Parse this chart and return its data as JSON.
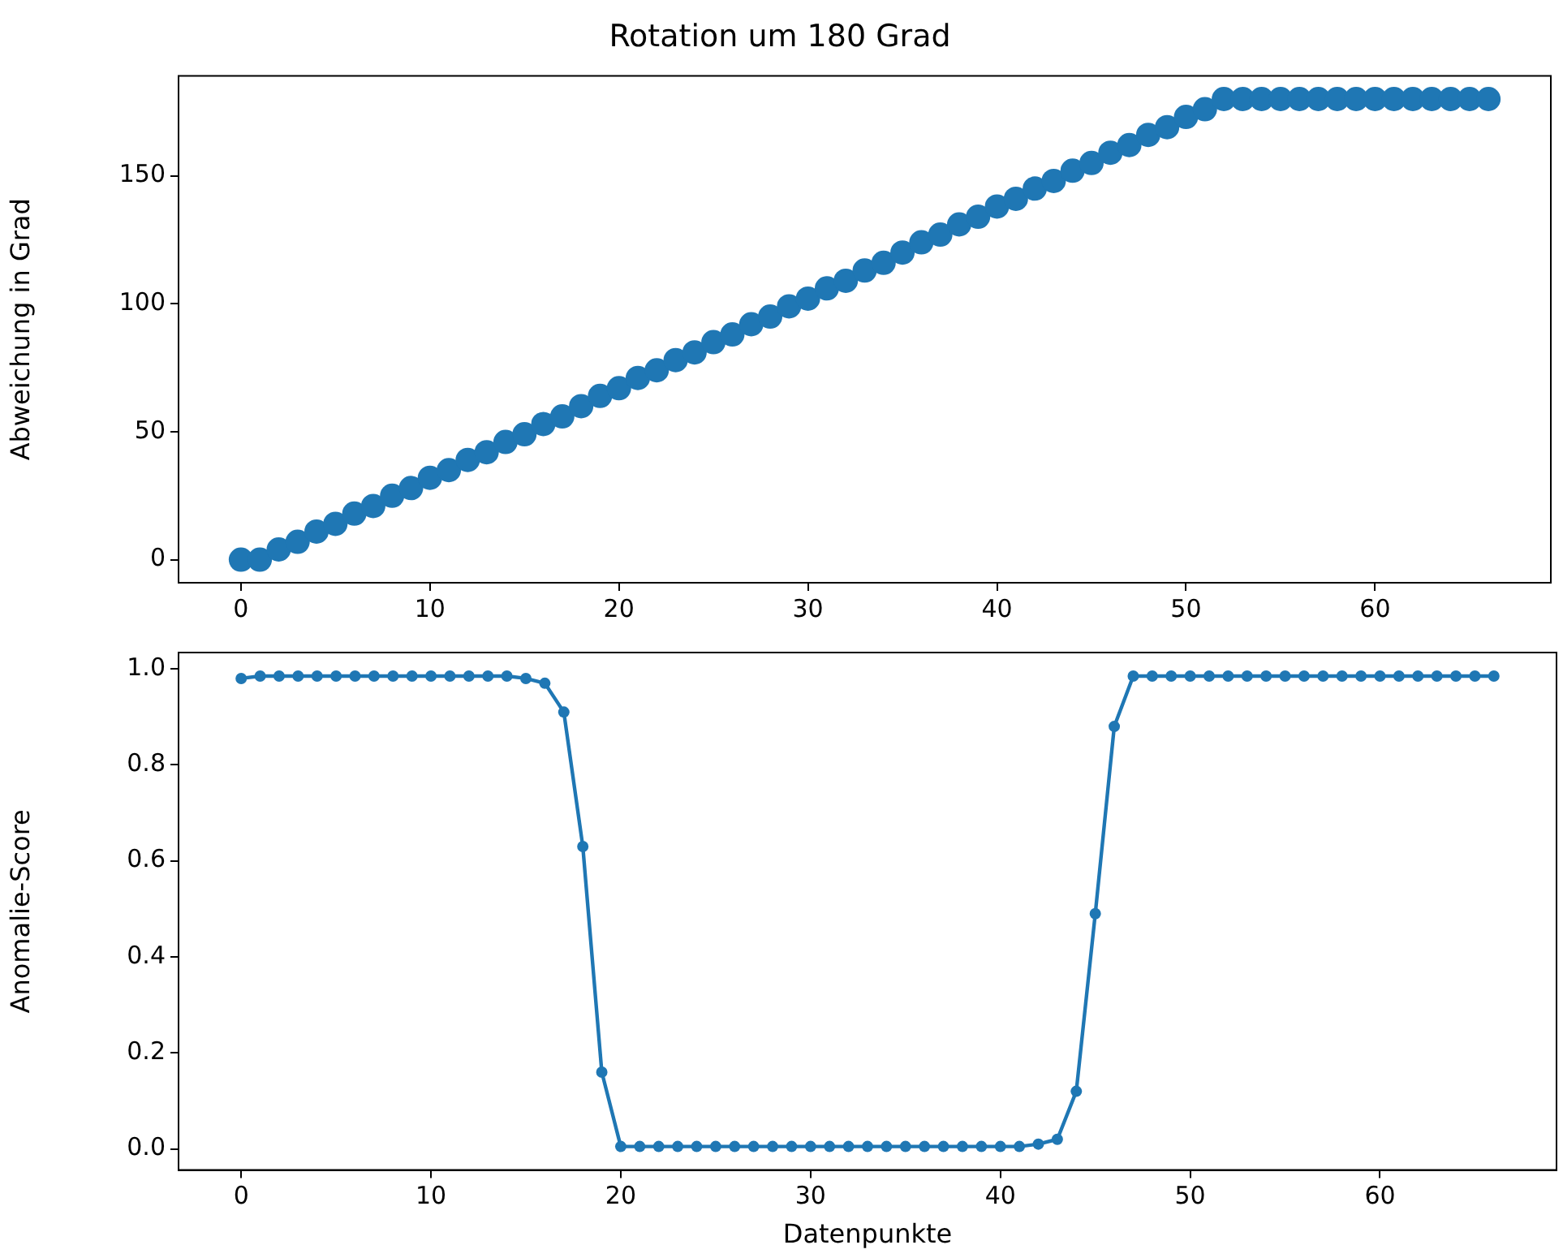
{
  "chart_data": [
    {
      "type": "scatter",
      "title": "Rotation um 180 Grad",
      "ylabel": "Abweichung in Grad",
      "marker": "circle",
      "color": "#1f77b4",
      "x": [
        0,
        1,
        2,
        3,
        4,
        5,
        6,
        7,
        8,
        9,
        10,
        11,
        12,
        13,
        14,
        15,
        16,
        17,
        18,
        19,
        20,
        21,
        22,
        23,
        24,
        25,
        26,
        27,
        28,
        29,
        30,
        31,
        32,
        33,
        34,
        35,
        36,
        37,
        38,
        39,
        40,
        41,
        42,
        43,
        44,
        45,
        46,
        47,
        48,
        49,
        50,
        51,
        52,
        53,
        54,
        55,
        56,
        57,
        58,
        59,
        60,
        61,
        62,
        63,
        64,
        65,
        66
      ],
      "values": [
        0,
        0,
        4,
        7,
        11,
        14,
        18,
        21,
        25,
        28,
        32,
        35,
        39,
        42,
        46,
        49,
        53,
        56,
        60,
        64,
        67,
        71,
        74,
        78,
        81,
        85,
        88,
        92,
        95,
        99,
        102,
        106,
        109,
        113,
        116,
        120,
        124,
        127,
        131,
        134,
        138,
        141,
        145,
        148,
        152,
        155,
        159,
        162,
        166,
        169,
        173,
        176,
        180,
        180,
        180,
        180,
        180,
        180,
        180,
        180,
        180,
        180,
        180,
        180,
        180,
        180,
        180
      ],
      "xlim": [
        -3.3,
        69.3
      ],
      "ylim": [
        -9,
        189
      ],
      "xticks": [
        0,
        10,
        20,
        30,
        40,
        50,
        60
      ],
      "yticks": [
        0,
        50,
        100,
        150
      ]
    },
    {
      "type": "line",
      "xlabel": "Datenpunkte",
      "ylabel": "Anomalie-Score",
      "marker": "circle",
      "line_style": "solid",
      "color": "#1f77b4",
      "x": [
        0,
        1,
        2,
        3,
        4,
        5,
        6,
        7,
        8,
        9,
        10,
        11,
        12,
        13,
        14,
        15,
        16,
        17,
        18,
        19,
        20,
        21,
        22,
        23,
        24,
        25,
        26,
        27,
        28,
        29,
        30,
        31,
        32,
        33,
        34,
        35,
        36,
        37,
        38,
        39,
        40,
        41,
        42,
        43,
        44,
        45,
        46,
        47,
        48,
        49,
        50,
        51,
        52,
        53,
        54,
        55,
        56,
        57,
        58,
        59,
        60,
        61,
        62,
        63,
        64,
        65,
        66
      ],
      "values": [
        0.98,
        0.985,
        0.985,
        0.985,
        0.985,
        0.985,
        0.985,
        0.985,
        0.985,
        0.985,
        0.985,
        0.985,
        0.985,
        0.985,
        0.985,
        0.98,
        0.97,
        0.91,
        0.63,
        0.16,
        0.005,
        0.005,
        0.005,
        0.005,
        0.005,
        0.005,
        0.005,
        0.005,
        0.005,
        0.005,
        0.005,
        0.005,
        0.005,
        0.005,
        0.005,
        0.005,
        0.005,
        0.005,
        0.005,
        0.005,
        0.005,
        0.005,
        0.01,
        0.02,
        0.12,
        0.49,
        0.88,
        0.985,
        0.985,
        0.985,
        0.985,
        0.985,
        0.985,
        0.985,
        0.985,
        0.985,
        0.985,
        0.985,
        0.985,
        0.985,
        0.985,
        0.985,
        0.985,
        0.985,
        0.985,
        0.985,
        0.985
      ],
      "xlim": [
        -3.3,
        69.3
      ],
      "ylim": [
        -0.044,
        1.034
      ],
      "xticks": [
        0,
        10,
        20,
        30,
        40,
        50,
        60
      ],
      "yticks": [
        {
          "value": 0,
          "label": "0.0"
        },
        0.2,
        0.4,
        0.6,
        0.8,
        {
          "value": 1,
          "label": "1.0"
        }
      ]
    }
  ]
}
